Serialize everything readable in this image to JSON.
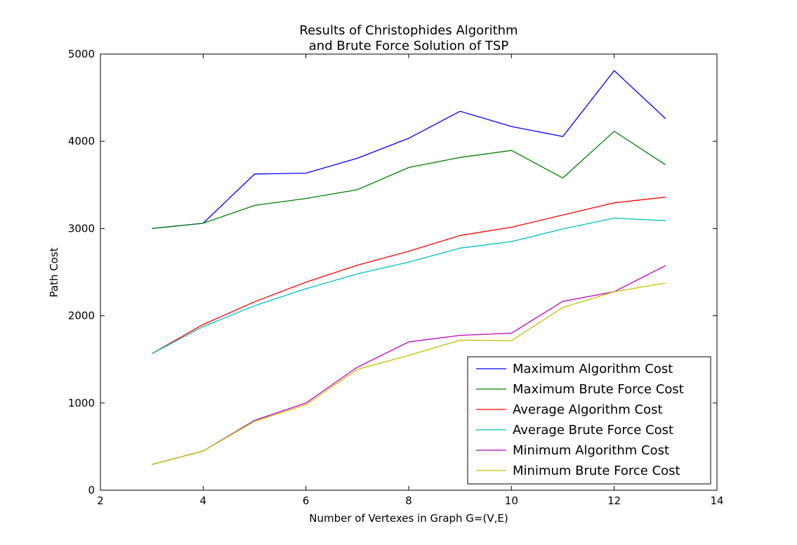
{
  "chart_data": {
    "type": "line",
    "title_lines": [
      "Results of Christophides Algorithm",
      "and Brute Force Solution of TSP"
    ],
    "xlabel": "Number of Vertexes in Graph G=(V,E)",
    "ylabel": "Path Cost",
    "xlim": [
      2,
      14
    ],
    "ylim": [
      0,
      5000
    ],
    "xticks": [
      2,
      4,
      6,
      8,
      10,
      12,
      14
    ],
    "yticks": [
      0,
      1000,
      2000,
      3000,
      4000,
      5000
    ],
    "grid": false,
    "legend_position": "bottom-right",
    "x": [
      3,
      4,
      5,
      6,
      7,
      8,
      9,
      10,
      11,
      12,
      13
    ],
    "series": [
      {
        "name": "Maximum Algorithm Cost",
        "color": "#0000ff",
        "values": [
          3000,
          3060,
          3625,
          3635,
          3805,
          4035,
          4345,
          4170,
          4055,
          4810,
          4260
        ]
      },
      {
        "name": "Maximum Brute Force Cost",
        "color": "#008000",
        "values": [
          3000,
          3060,
          3265,
          3345,
          3445,
          3700,
          3815,
          3895,
          3580,
          4115,
          3730
        ]
      },
      {
        "name": "Average Algorithm Cost",
        "color": "#ff0000",
        "values": [
          1565,
          1900,
          2160,
          2385,
          2580,
          2740,
          2920,
          3015,
          3155,
          3295,
          3360
        ]
      },
      {
        "name": "Average Brute Force Cost",
        "color": "#00bfbf",
        "values": [
          1565,
          1875,
          2115,
          2310,
          2480,
          2615,
          2775,
          2850,
          2995,
          3120,
          3090
        ]
      },
      {
        "name": "Minimum Algorithm Cost",
        "color": "#bf00bf",
        "values": [
          295,
          450,
          800,
          1000,
          1410,
          1700,
          1775,
          1800,
          2165,
          2275,
          2575
        ]
      },
      {
        "name": "Minimum Brute Force Cost",
        "color": "#bfbf00",
        "values": [
          295,
          450,
          790,
          980,
          1385,
          1545,
          1720,
          1715,
          2095,
          2275,
          2375
        ]
      }
    ]
  }
}
